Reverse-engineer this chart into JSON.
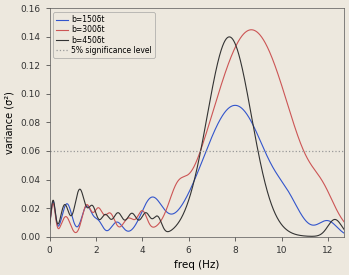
{
  "title": "",
  "xlabel": "freq (Hz)",
  "ylabel": "variance (σ²)",
  "xlim": [
    0,
    12.7
  ],
  "ylim": [
    0,
    0.16
  ],
  "significance_level": 0.06,
  "significance_color": "#999999",
  "significance_label": "5% significance level",
  "line_blue_label": "b=150δt",
  "line_red_label": "b=300δt",
  "line_black_label": "b=450δt",
  "line_blue_color": "#3355cc",
  "line_red_color": "#cc5555",
  "line_black_color": "#333333",
  "background_color": "#ede8de",
  "xticks": [
    0,
    2,
    4,
    6,
    8,
    10,
    12
  ],
  "yticks": [
    0,
    0.02,
    0.04,
    0.06,
    0.08,
    0.1,
    0.12,
    0.14,
    0.16
  ]
}
